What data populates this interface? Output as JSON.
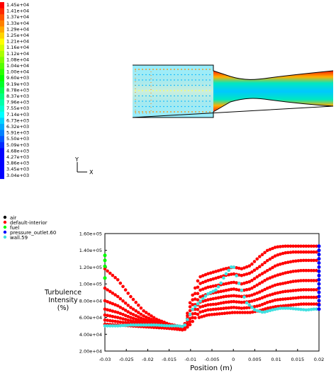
{
  "colorbar": {
    "labels": [
      "1.45e+04",
      "1.41e+04",
      "1.37e+04",
      "1.33e+04",
      "1.29e+04",
      "1.25e+04",
      "1.21e+04",
      "1.16e+04",
      "1.12e+04",
      "1.08e+04",
      "1.04e+04",
      "1.00e+04",
      "9.60e+03",
      "9.19e+03",
      "8.78e+03",
      "8.37e+03",
      "7.96e+03",
      "7.55e+03",
      "7.14e+03",
      "6.73e+03",
      "6.32e+03",
      "5.91e+03",
      "5.50e+03",
      "5.09e+03",
      "4.68e+03",
      "4.27e+03",
      "3.86e+03",
      "3.45e+03",
      "3.04e+03"
    ],
    "colors": [
      "#ff0000",
      "#ff2a00",
      "#ff5500",
      "#ff8000",
      "#ffaa00",
      "#ffd400",
      "#ffff00",
      "#d4ff00",
      "#aaff00",
      "#80ff00",
      "#55ff00",
      "#2aff00",
      "#00ff00",
      "#00ff2a",
      "#00ff55",
      "#00ff80",
      "#00ffaa",
      "#00ffd4",
      "#00ffff",
      "#00d4ff",
      "#00aaff",
      "#0080ff",
      "#0055ff",
      "#002aff",
      "#0000ff",
      "#0000ff",
      "#0000ff",
      "#0000ff",
      "#0000ff"
    ]
  },
  "axes_triad": {
    "y": "Y",
    "x": "X"
  },
  "legend": [
    {
      "label": "air",
      "color": "#000000"
    },
    {
      "label": "default-interior",
      "color": "#ff0000"
    },
    {
      "label": "fuel",
      "color": "#00ff00"
    },
    {
      "label": "pressure_outlet.60",
      "color": "#0000ff"
    },
    {
      "label": "wall.59",
      "color": "#40e0e0"
    }
  ],
  "chart_data": {
    "type": "scatter",
    "ylabel_lines": [
      "Turbulence",
      "Intensity",
      "(%)"
    ],
    "xlabel": "Position (m)",
    "xlim": [
      -0.03,
      0.02
    ],
    "ylim": [
      20000,
      160000
    ],
    "x_ticks": [
      "-0.03",
      "-0.025",
      "-0.02",
      "-0.015",
      "-0.01",
      "-0.005",
      "0",
      "0.005",
      "0.01",
      "0.015",
      "0.02"
    ],
    "x_tick_values": [
      -0.03,
      -0.025,
      -0.02,
      -0.015,
      -0.01,
      -0.005,
      0,
      0.005,
      0.01,
      0.015,
      0.02
    ],
    "y_ticks": [
      "2.00e+04",
      "4.00e+04",
      "6.00e+04",
      "8.00e+04",
      "1.00e+05",
      "1.20e+05",
      "1.40e+05",
      "1.60e+05"
    ],
    "y_tick_values": [
      20000,
      40000,
      60000,
      80000,
      100000,
      120000,
      140000,
      160000
    ],
    "series": [
      {
        "name": "default-interior",
        "color": "#ff0000",
        "curves": [
          {
            "x": [
              -0.03,
              -0.027,
              -0.024,
              -0.021,
              -0.018,
              -0.015,
              -0.013,
              -0.0115,
              -0.01,
              -0.008,
              -0.006,
              -0.004,
              -0.002,
              0,
              0.002,
              0.004,
              0.006,
              0.008,
              0.01,
              0.012,
              0.014,
              0.016,
              0.018,
              0.02
            ],
            "y": [
              118000,
              105000,
              85000,
              68000,
              58000,
              52000,
              50000,
              49000,
              80000,
              108000,
              112000,
              115000,
              118000,
              120000,
              118000,
              122000,
              132000,
              140000,
              144000,
              145000,
              145000,
              145000,
              145000,
              145000
            ]
          },
          {
            "x": [
              -0.03,
              -0.027,
              -0.024,
              -0.021,
              -0.018,
              -0.015,
              -0.013,
              -0.0115,
              -0.01,
              -0.008,
              -0.006,
              -0.004,
              -0.002,
              0,
              0.002,
              0.004,
              0.006,
              0.008,
              0.01,
              0.012,
              0.014,
              0.016,
              0.018,
              0.02
            ],
            "y": [
              95000,
              85000,
              72000,
              62000,
              55000,
              51000,
              49000,
              48000,
              75000,
              100000,
              104000,
              107000,
              110000,
              112000,
              110000,
              113000,
              120000,
              128000,
              134000,
              137000,
              138000,
              138000,
              138000,
              138000
            ]
          },
          {
            "x": [
              -0.03,
              -0.027,
              -0.024,
              -0.021,
              -0.018,
              -0.015,
              -0.013,
              -0.0115,
              -0.01,
              -0.008,
              -0.006,
              -0.004,
              -0.002,
              0,
              0.002,
              0.004,
              0.006,
              0.008,
              0.01,
              0.012,
              0.014,
              0.016,
              0.018,
              0.02
            ],
            "y": [
              80000,
              74000,
              65000,
              58000,
              53000,
              50000,
              48000,
              47000,
              70000,
              92000,
              96000,
              98000,
              100000,
              102000,
              100000,
              103000,
              110000,
              116000,
              122000,
              125000,
              127000,
              128000,
              128000,
              128000
            ]
          },
          {
            "x": [
              -0.03,
              -0.027,
              -0.024,
              -0.021,
              -0.018,
              -0.015,
              -0.013,
              -0.0115,
              -0.01,
              -0.008,
              -0.006,
              -0.004,
              -0.002,
              0,
              0.002,
              0.004,
              0.006,
              0.008,
              0.01,
              0.012,
              0.014,
              0.016,
              0.018,
              0.02
            ],
            "y": [
              70000,
              66000,
              60000,
              55000,
              51000,
              49000,
              47000,
              46000,
              65000,
              84000,
              88000,
              90000,
              92000,
              94000,
              92000,
              94000,
              100000,
              106000,
              110000,
              113000,
              115000,
              116000,
              116000,
              116000
            ]
          },
          {
            "x": [
              -0.03,
              -0.027,
              -0.024,
              -0.021,
              -0.018,
              -0.015,
              -0.013,
              -0.0115,
              -0.01,
              -0.008,
              -0.006,
              -0.004,
              -0.002,
              0,
              0.002,
              0.004,
              0.006,
              0.008,
              0.01,
              0.012,
              0.014,
              0.016,
              0.018,
              0.02
            ],
            "y": [
              63000,
              60000,
              56000,
              53000,
              50000,
              48000,
              46000,
              45000,
              60000,
              78000,
              81000,
              83000,
              85000,
              86000,
              85000,
              86000,
              90000,
              95000,
              99000,
              101000,
              103000,
              104000,
              104000,
              104000
            ]
          },
          {
            "x": [
              -0.03,
              -0.027,
              -0.024,
              -0.021,
              -0.018,
              -0.015,
              -0.013,
              -0.0115,
              -0.01,
              -0.008,
              -0.006,
              -0.004,
              -0.002,
              0,
              0.002,
              0.004,
              0.006,
              0.008,
              0.01,
              0.012,
              0.014,
              0.016,
              0.018,
              0.02
            ],
            "y": [
              57000,
              55000,
              53000,
              51000,
              49000,
              47000,
              46000,
              45000,
              56000,
              72000,
              75000,
              76000,
              78000,
              79000,
              78000,
              79000,
              82000,
              86000,
              89000,
              91000,
              92000,
              93000,
              93000,
              93000
            ]
          },
          {
            "x": [
              -0.03,
              -0.027,
              -0.024,
              -0.021,
              -0.018,
              -0.015,
              -0.013,
              -0.0115,
              -0.01,
              -0.008,
              -0.006,
              -0.004,
              -0.002,
              0,
              0.002,
              0.004,
              0.006,
              0.008,
              0.01,
              0.012,
              0.014,
              0.016,
              0.018,
              0.02
            ],
            "y": [
              52000,
              51000,
              50000,
              49000,
              48000,
              47000,
              46000,
              45000,
              52000,
              66000,
              69000,
              70000,
              71000,
              72000,
              71000,
              72000,
              74000,
              78000,
              81000,
              82000,
              83000,
              84000,
              84000,
              84000
            ]
          },
          {
            "x": [
              -0.008,
              -0.006,
              -0.004,
              -0.002,
              0,
              0.002,
              0.004,
              0.006,
              0.008,
              0.01,
              0.012,
              0.014,
              0.016,
              0.018,
              0.02
            ],
            "y": [
              60000,
              63000,
              64000,
              65000,
              66000,
              66000,
              66000,
              68000,
              71000,
              73000,
              74000,
              75000,
              76000,
              76000,
              76000
            ]
          }
        ]
      },
      {
        "name": "wall.59",
        "color": "#40e0e0",
        "curves": [
          {
            "x": [
              -0.03,
              -0.027,
              -0.024,
              -0.021,
              -0.018,
              -0.015,
              -0.013,
              -0.0115,
              -0.0105,
              -0.0095,
              -0.008,
              -0.006,
              -0.004,
              -0.003,
              -0.002,
              -0.0005,
              0,
              0.001,
              0.003,
              0.005,
              0.007,
              0.009,
              0.011,
              0.013,
              0.015,
              0.017,
              0.019,
              0.02
            ],
            "y": [
              50000,
              50000,
              51000,
              51000,
              51000,
              50000,
              50000,
              49000,
              60000,
              70000,
              78000,
              88000,
              93000,
              100000,
              110000,
              120000,
              122000,
              105000,
              78000,
              69000,
              66000,
              69000,
              71000,
              71000,
              70000,
              69000,
              70000,
              70000
            ]
          }
        ]
      },
      {
        "name": "fuel",
        "color": "#00ff00",
        "points": {
          "x": [
            -0.03,
            -0.03,
            -0.03,
            -0.03
          ],
          "y": [
            107000,
            121000,
            128000,
            134000
          ]
        }
      },
      {
        "name": "pressure_outlet.60",
        "color": "#0000ff",
        "points": {
          "x": [
            0.02,
            0.02,
            0.02,
            0.02,
            0.02,
            0.02,
            0.02,
            0.02,
            0.02,
            0.02,
            0.02,
            0.02,
            0.02,
            0.02,
            0.02,
            0.02
          ],
          "y": [
            70000,
            75000,
            80000,
            85000,
            90000,
            95000,
            100000,
            105000,
            110000,
            115000,
            120000,
            125000,
            130000,
            135000,
            140000,
            145000
          ]
        }
      }
    ]
  }
}
